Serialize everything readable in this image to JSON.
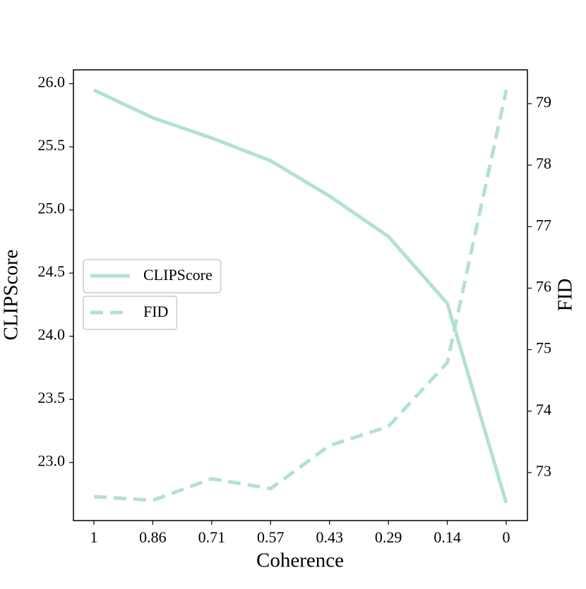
{
  "chart_data": {
    "type": "line",
    "x_label": "Coherence",
    "y_label": "CLIPScore",
    "y2_label": "FID",
    "categories": [
      "1",
      "0.86",
      "0.71",
      "0.57",
      "0.43",
      "0.29",
      "0.14",
      "0"
    ],
    "series": [
      {
        "name": "CLIPScore",
        "color": "#b3e2cd",
        "style": "solid",
        "values": [
          25.95,
          25.73,
          25.57,
          25.39,
          25.11,
          24.79,
          24.26,
          22.68
        ]
      },
      {
        "name": "FID",
        "color": "#b3e2cd",
        "style": "dashed",
        "axis": "y2",
        "values": [
          72.61,
          72.55,
          72.9,
          72.74,
          73.44,
          73.75,
          74.79,
          79.22
        ]
      }
    ],
    "ylim": [
      22.54,
      26.11
    ],
    "yticks": [
      {
        "value": 23,
        "label": "23.0"
      },
      23.5,
      {
        "value": 24,
        "label": "24.0"
      },
      24.5,
      {
        "value": 25,
        "label": "25.0"
      },
      25.5,
      {
        "value": 26,
        "label": "26.0"
      }
    ],
    "y2lim": [
      72.22,
      79.55
    ],
    "y2ticks": [
      73,
      74,
      75,
      76,
      77,
      78,
      79
    ],
    "legend": "center left"
  }
}
